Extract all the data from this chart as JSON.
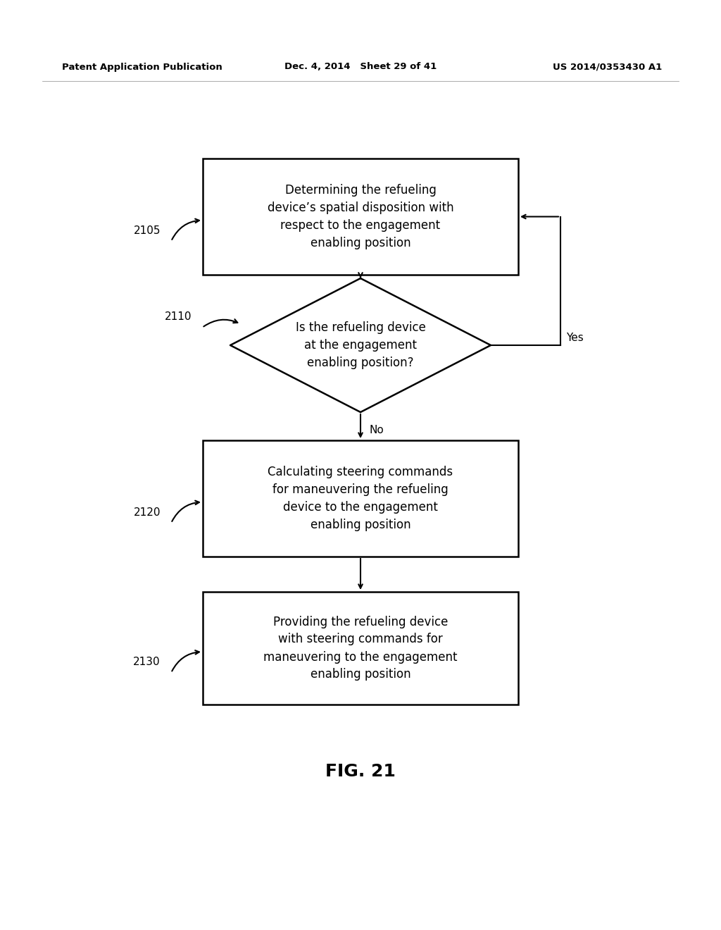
{
  "header_left": "Patent Application Publication",
  "header_mid": "Dec. 4, 2014   Sheet 29 of 41",
  "header_right": "US 2014/0353430 A1",
  "fig_label": "FIG. 21",
  "box1_text": "Determining the refueling\ndevice’s spatial disposition with\nrespect to the engagement\nenabling position",
  "box1_label": "2105",
  "diamond_text": "Is the refueling device\nat the engagement\nenabling position?",
  "diamond_label": "2110",
  "box2_text": "Calculating steering commands\nfor maneuvering the refueling\ndevice to the engagement\nenabling position",
  "box2_label": "2120",
  "box3_text": "Providing the refueling device\nwith steering commands for\nmaneuvering to the engagement\nenabling position",
  "box3_label": "2130",
  "yes_label": "Yes",
  "no_label": "No",
  "bg_color": "#ffffff",
  "box_edge_color": "#000000",
  "text_color": "#000000",
  "arrow_color": "#000000"
}
